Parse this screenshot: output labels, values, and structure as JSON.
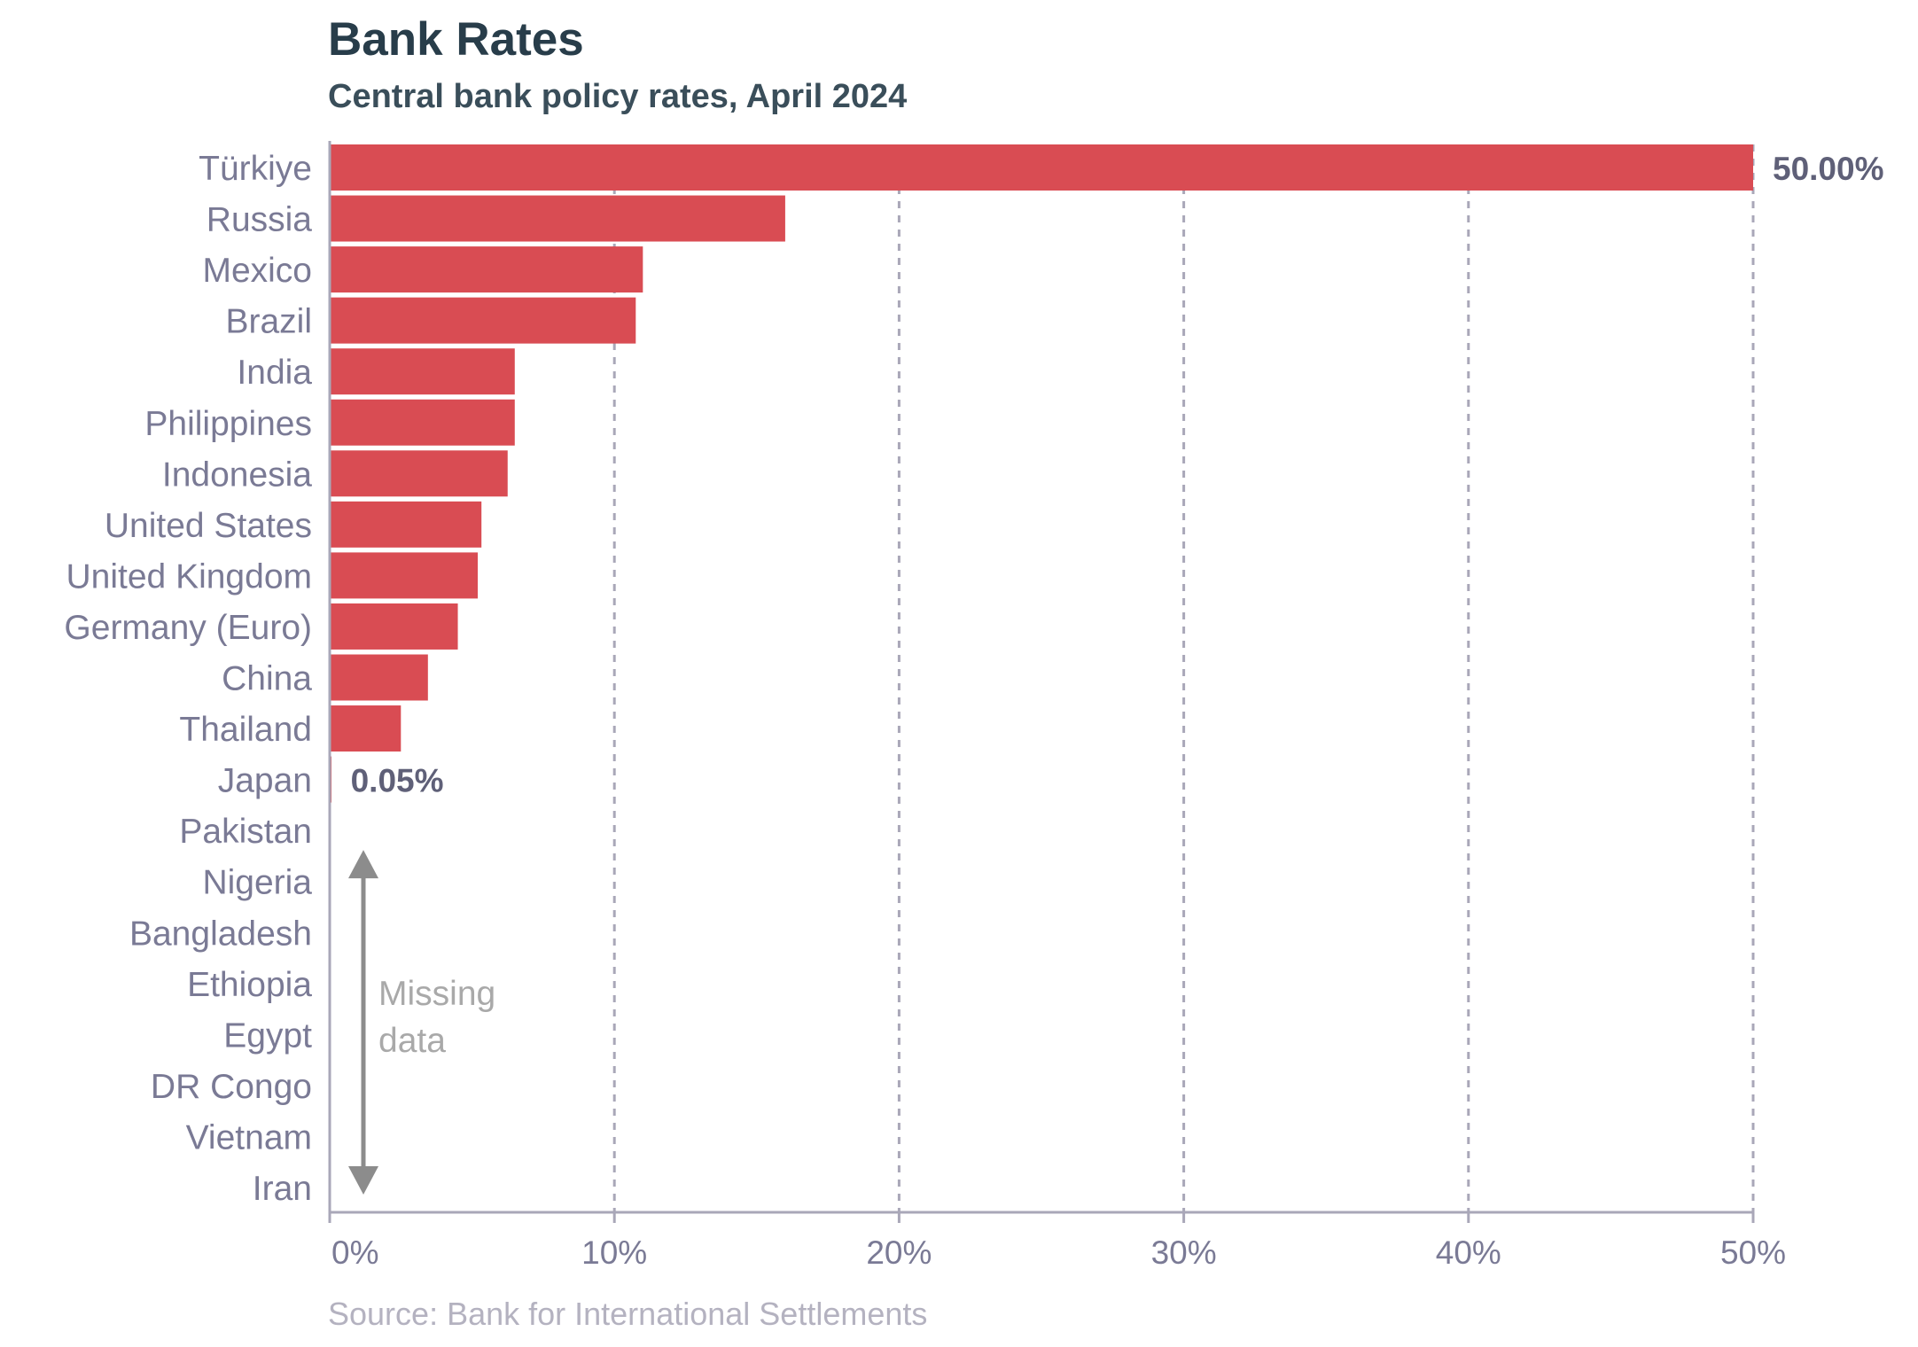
{
  "chart_data": {
    "type": "bar",
    "orientation": "horizontal",
    "title": "Bank Rates",
    "subtitle": "Central bank policy rates, April 2024",
    "source": "Source: Bank for International Settlements",
    "categories": [
      "Türkiye",
      "Russia",
      "Mexico",
      "Brazil",
      "India",
      "Philippines",
      "Indonesia",
      "United States",
      "United Kingdom",
      "Germany (Euro)",
      "China",
      "Thailand",
      "Japan",
      "Pakistan",
      "Nigeria",
      "Bangladesh",
      "Ethiopia",
      "Egypt",
      "DR Congo",
      "Vietnam",
      "Iran"
    ],
    "values": [
      50.0,
      16.0,
      11.0,
      10.75,
      6.5,
      6.5,
      6.25,
      5.33,
      5.2,
      4.5,
      3.45,
      2.5,
      0.05,
      null,
      null,
      null,
      null,
      null,
      null,
      null,
      null
    ],
    "value_labels": [
      {
        "category": "Türkiye",
        "text": "50.00%"
      },
      {
        "category": "Japan",
        "text": "0.05%"
      }
    ],
    "xlim": [
      0,
      50
    ],
    "ticks": [
      0,
      10,
      20,
      30,
      40,
      50
    ],
    "tick_labels": [
      "0%",
      "10%",
      "20%",
      "30%",
      "40%",
      "50%"
    ],
    "grid": "vertical-dashed",
    "bar_color": "#d94c53",
    "annotation": {
      "line1": "Missing",
      "line2": "data",
      "range": [
        "Pakistan",
        "Iran"
      ]
    },
    "colors": {
      "title": "#283d4a",
      "labels": "#7a7a95",
      "grid": "#a9a7b8",
      "axis": "#a9a7b8",
      "annotation": "#8c8c8c"
    }
  }
}
